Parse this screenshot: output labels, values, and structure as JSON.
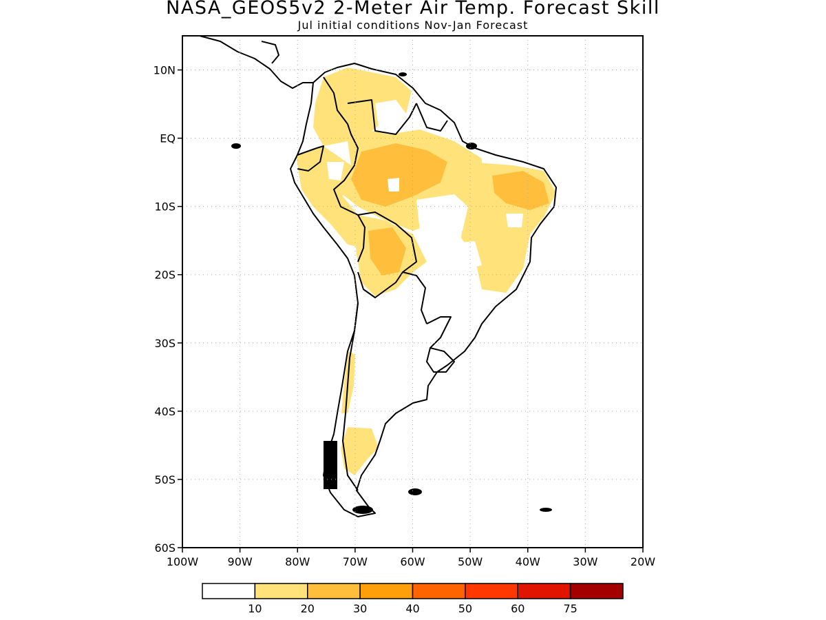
{
  "header": {
    "title": "NASA_GEOS5v2 2-Meter Air Temp. Forecast Skill",
    "subtitle": "Jul initial conditions  Nov-Jan Forecast"
  },
  "map": {
    "projection": "latitude-longitude",
    "lat_range": [
      -60,
      15
    ],
    "lon_range": [
      -100,
      -20
    ],
    "lat_labels": [
      "10N",
      "EQ",
      "10S",
      "20S",
      "30S",
      "40S",
      "50S",
      "60S"
    ],
    "lon_labels": [
      "100W",
      "90W",
      "80W",
      "70W",
      "60W",
      "50W",
      "40W",
      "30W",
      "20W"
    ],
    "gridlines": "dotted",
    "coastline_color": "#000000",
    "skill_regions": [
      {
        "name": "Colombia-Venezuela",
        "level": 1
      },
      {
        "name": "Ecuador-Peru coast",
        "level": 1
      },
      {
        "name": "Amazon",
        "level": 1
      },
      {
        "name": "Western Amazon core",
        "level": 2
      },
      {
        "name": "NE Brazil",
        "level": 1
      },
      {
        "name": "NE Brazil core",
        "level": 2
      },
      {
        "name": "Bolivia",
        "level": 1
      },
      {
        "name": "Bolivia core",
        "level": 2
      },
      {
        "name": "Central Chile",
        "level": 1
      },
      {
        "name": "Patagonia",
        "level": 1
      }
    ]
  },
  "colorbar": {
    "colors": [
      "#ffffff",
      "#ffe37a",
      "#ffbf3c",
      "#ff9f0a",
      "#ff6400",
      "#ff3700",
      "#e11400",
      "#a50000"
    ],
    "labels": [
      "10",
      "20",
      "30",
      "40",
      "50",
      "60",
      "75"
    ]
  }
}
